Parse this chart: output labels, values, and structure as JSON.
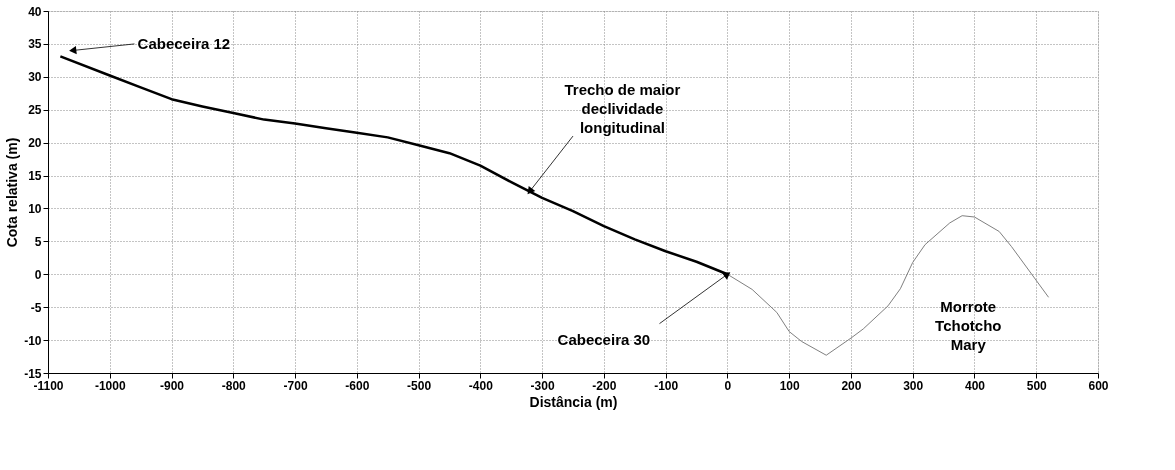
{
  "chart_data": {
    "type": "line",
    "xlabel": "Distância (m)",
    "ylabel": "Cota relativa (m)",
    "xlim": [
      -1100,
      600
    ],
    "xticks": [
      -1100,
      -1000,
      -900,
      -800,
      -700,
      -600,
      -500,
      -400,
      -300,
      -200,
      -100,
      0,
      100,
      200,
      300,
      400,
      500,
      600
    ],
    "ylim": [
      -15,
      40
    ],
    "yticks": [
      -15,
      -10,
      -5,
      0,
      5,
      10,
      15,
      20,
      25,
      30,
      35,
      40
    ],
    "grid": true,
    "line_style": "solid",
    "marker": "none",
    "series": [
      {
        "color": "#000000",
        "x": [
          -1080,
          -1000,
          -950,
          -900,
          -850,
          -800,
          -750,
          -700,
          -650,
          -600,
          -550,
          -500,
          -450,
          -400,
          -350,
          -300,
          -250,
          -200,
          -150,
          -100,
          -50,
          0
        ],
        "values": [
          33.1,
          30.2,
          28.4,
          26.6,
          25.5,
          24.5,
          23.5,
          22.9,
          22.2,
          21.5,
          20.8,
          19.6,
          18.4,
          16.5,
          14.0,
          11.6,
          9.6,
          7.3,
          5.3,
          3.5,
          1.9,
          0
        ]
      },
      {
        "color": "#808080",
        "x": [
          0,
          40,
          80,
          100,
          120,
          160,
          200,
          220,
          260,
          280,
          300,
          320,
          360,
          380,
          400,
          440,
          460,
          520
        ],
        "values": [
          0,
          -2.3,
          -5.8,
          -8.7,
          -10.2,
          -12.3,
          -9.7,
          -8.3,
          -4.8,
          -2.2,
          1.8,
          4.5,
          7.8,
          8.9,
          8.7,
          6.5,
          4.2,
          -3.5
        ]
      }
    ],
    "annotations": [
      {
        "text": "Cabeceira 12",
        "x": -1060,
        "y": 34
      },
      {
        "text": "Trecho de maior\ndeclividade\nlongitudinal",
        "x": -320,
        "y": 12.6
      },
      {
        "text": "Cabeceira 30",
        "x": 0,
        "y": 0
      },
      "Morrote\nTchotcho\nMary"
    ]
  }
}
